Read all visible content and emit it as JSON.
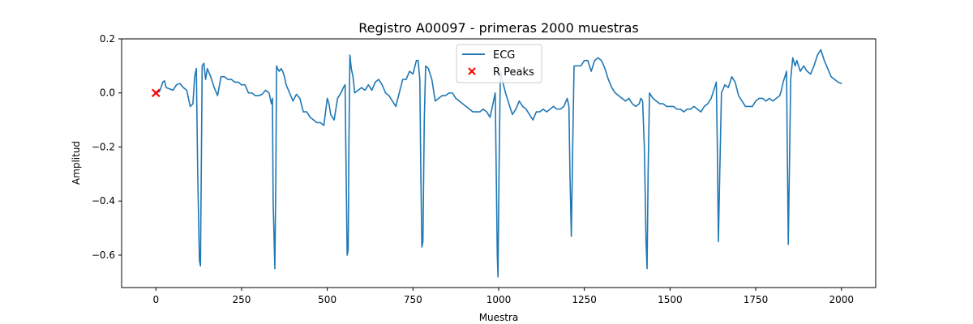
{
  "chart_data": {
    "type": "line",
    "title": "Registro A00097 - primeras 2000 muestras",
    "xlabel": "Muestra",
    "ylabel": "Amplitud",
    "xlim": [
      -100,
      2100
    ],
    "ylim": [
      -0.72,
      0.2
    ],
    "xticks": [
      0,
      250,
      500,
      750,
      1000,
      1250,
      1500,
      1750,
      2000
    ],
    "xtick_labels": [
      "0",
      "250",
      "500",
      "750",
      "1000",
      "1250",
      "1500",
      "1750",
      "2000"
    ],
    "yticks": [
      0.2,
      0.0,
      -0.2,
      -0.4,
      -0.6
    ],
    "ytick_labels": [
      "0.2",
      "0.0",
      "−0.2",
      "−0.4",
      "−0.6"
    ],
    "grid": false,
    "legend_position": "top-center",
    "series": [
      {
        "name": "ECG",
        "kind": "line",
        "color": "#1f77b4",
        "points": [
          [
            0,
            0.0
          ],
          [
            10,
            0.005
          ],
          [
            15,
            0.02
          ],
          [
            20,
            0.04
          ],
          [
            25,
            0.045
          ],
          [
            30,
            0.02
          ],
          [
            40,
            0.015
          ],
          [
            50,
            0.01
          ],
          [
            60,
            0.03
          ],
          [
            70,
            0.035
          ],
          [
            80,
            0.02
          ],
          [
            90,
            0.01
          ],
          [
            95,
            -0.02
          ],
          [
            100,
            -0.05
          ],
          [
            108,
            -0.04
          ],
          [
            113,
            0.06
          ],
          [
            118,
            0.09
          ],
          [
            122,
            -0.3
          ],
          [
            127,
            -0.62
          ],
          [
            130,
            -0.64
          ],
          [
            133,
            -0.2
          ],
          [
            135,
            0.1
          ],
          [
            140,
            0.11
          ],
          [
            145,
            0.05
          ],
          [
            150,
            0.09
          ],
          [
            160,
            0.06
          ],
          [
            170,
            0.02
          ],
          [
            180,
            -0.01
          ],
          [
            190,
            0.06
          ],
          [
            200,
            0.06
          ],
          [
            210,
            0.05
          ],
          [
            220,
            0.05
          ],
          [
            230,
            0.04
          ],
          [
            240,
            0.04
          ],
          [
            250,
            0.03
          ],
          [
            260,
            0.03
          ],
          [
            270,
            0.0
          ],
          [
            280,
            0.0
          ],
          [
            290,
            -0.01
          ],
          [
            300,
            -0.01
          ],
          [
            310,
            -0.005
          ],
          [
            320,
            0.01
          ],
          [
            330,
            0.0
          ],
          [
            337,
            -0.04
          ],
          [
            340,
            -0.02
          ],
          [
            342,
            -0.4
          ],
          [
            347,
            -0.65
          ],
          [
            350,
            -0.3
          ],
          [
            352,
            0.1
          ],
          [
            355,
            0.09
          ],
          [
            360,
            0.08
          ],
          [
            365,
            0.09
          ],
          [
            370,
            0.08
          ],
          [
            375,
            0.06
          ],
          [
            380,
            0.03
          ],
          [
            390,
            0.0
          ],
          [
            400,
            -0.03
          ],
          [
            410,
            -0.005
          ],
          [
            420,
            -0.02
          ],
          [
            430,
            -0.07
          ],
          [
            440,
            -0.07
          ],
          [
            450,
            -0.09
          ],
          [
            460,
            -0.1
          ],
          [
            470,
            -0.11
          ],
          [
            480,
            -0.11
          ],
          [
            490,
            -0.12
          ],
          [
            500,
            -0.02
          ],
          [
            505,
            -0.04
          ],
          [
            510,
            -0.08
          ],
          [
            520,
            -0.1
          ],
          [
            530,
            -0.02
          ],
          [
            540,
            0.0
          ],
          [
            547,
            0.02
          ],
          [
            552,
            0.03
          ],
          [
            555,
            -0.3
          ],
          [
            558,
            -0.6
          ],
          [
            561,
            -0.58
          ],
          [
            563,
            -0.2
          ],
          [
            566,
            0.14
          ],
          [
            570,
            0.09
          ],
          [
            575,
            0.06
          ],
          [
            580,
            0.0
          ],
          [
            590,
            0.01
          ],
          [
            600,
            0.02
          ],
          [
            610,
            0.01
          ],
          [
            620,
            0.03
          ],
          [
            630,
            0.01
          ],
          [
            640,
            0.04
          ],
          [
            650,
            0.05
          ],
          [
            660,
            0.03
          ],
          [
            670,
            0.0
          ],
          [
            680,
            -0.01
          ],
          [
            690,
            -0.03
          ],
          [
            700,
            -0.05
          ],
          [
            710,
            0.0
          ],
          [
            720,
            0.05
          ],
          [
            730,
            0.05
          ],
          [
            740,
            0.08
          ],
          [
            750,
            0.07
          ],
          [
            760,
            0.12
          ],
          [
            765,
            0.12
          ],
          [
            770,
            0.05
          ],
          [
            773,
            -0.3
          ],
          [
            776,
            -0.57
          ],
          [
            779,
            -0.55
          ],
          [
            783,
            -0.1
          ],
          [
            787,
            0.1
          ],
          [
            795,
            0.09
          ],
          [
            805,
            0.05
          ],
          [
            815,
            -0.03
          ],
          [
            825,
            -0.02
          ],
          [
            835,
            -0.01
          ],
          [
            845,
            -0.01
          ],
          [
            855,
            0.0
          ],
          [
            865,
            0.0
          ],
          [
            875,
            -0.02
          ],
          [
            885,
            -0.03
          ],
          [
            895,
            -0.04
          ],
          [
            905,
            -0.05
          ],
          [
            915,
            -0.06
          ],
          [
            925,
            -0.07
          ],
          [
            935,
            -0.07
          ],
          [
            945,
            -0.07
          ],
          [
            955,
            -0.06
          ],
          [
            965,
            -0.07
          ],
          [
            975,
            -0.09
          ],
          [
            985,
            -0.03
          ],
          [
            990,
            0.0
          ],
          [
            993,
            -0.3
          ],
          [
            996,
            -0.6
          ],
          [
            998,
            -0.68
          ],
          [
            1001,
            -0.3
          ],
          [
            1005,
            0.08
          ],
          [
            1010,
            0.05
          ],
          [
            1020,
            0.0
          ],
          [
            1030,
            -0.04
          ],
          [
            1040,
            -0.08
          ],
          [
            1050,
            -0.06
          ],
          [
            1060,
            -0.03
          ],
          [
            1070,
            -0.05
          ],
          [
            1080,
            -0.06
          ],
          [
            1090,
            -0.08
          ],
          [
            1100,
            -0.1
          ],
          [
            1110,
            -0.07
          ],
          [
            1120,
            -0.07
          ],
          [
            1130,
            -0.06
          ],
          [
            1140,
            -0.07
          ],
          [
            1150,
            -0.06
          ],
          [
            1160,
            -0.05
          ],
          [
            1170,
            -0.06
          ],
          [
            1180,
            -0.06
          ],
          [
            1190,
            -0.05
          ],
          [
            1200,
            -0.02
          ],
          [
            1205,
            -0.05
          ],
          [
            1208,
            -0.3
          ],
          [
            1212,
            -0.53
          ],
          [
            1216,
            -0.2
          ],
          [
            1220,
            0.1
          ],
          [
            1230,
            0.1
          ],
          [
            1240,
            0.1
          ],
          [
            1250,
            0.12
          ],
          [
            1260,
            0.12
          ],
          [
            1270,
            0.08
          ],
          [
            1280,
            0.12
          ],
          [
            1290,
            0.13
          ],
          [
            1300,
            0.12
          ],
          [
            1310,
            0.09
          ],
          [
            1320,
            0.05
          ],
          [
            1330,
            0.02
          ],
          [
            1340,
            0.0
          ],
          [
            1350,
            -0.01
          ],
          [
            1360,
            -0.02
          ],
          [
            1370,
            -0.03
          ],
          [
            1380,
            -0.02
          ],
          [
            1390,
            -0.04
          ],
          [
            1400,
            -0.05
          ],
          [
            1410,
            -0.04
          ],
          [
            1415,
            -0.02
          ],
          [
            1420,
            -0.03
          ],
          [
            1425,
            -0.2
          ],
          [
            1430,
            -0.55
          ],
          [
            1433,
            -0.65
          ],
          [
            1436,
            -0.3
          ],
          [
            1440,
            0.0
          ],
          [
            1450,
            -0.02
          ],
          [
            1460,
            -0.03
          ],
          [
            1470,
            -0.04
          ],
          [
            1480,
            -0.04
          ],
          [
            1490,
            -0.05
          ],
          [
            1500,
            -0.05
          ],
          [
            1510,
            -0.05
          ],
          [
            1520,
            -0.06
          ],
          [
            1530,
            -0.06
          ],
          [
            1540,
            -0.07
          ],
          [
            1550,
            -0.06
          ],
          [
            1560,
            -0.06
          ],
          [
            1570,
            -0.05
          ],
          [
            1580,
            -0.06
          ],
          [
            1590,
            -0.07
          ],
          [
            1600,
            -0.05
          ],
          [
            1610,
            -0.04
          ],
          [
            1620,
            -0.02
          ],
          [
            1625,
            0.0
          ],
          [
            1630,
            0.02
          ],
          [
            1635,
            0.04
          ],
          [
            1638,
            -0.2
          ],
          [
            1641,
            -0.55
          ],
          [
            1645,
            -0.3
          ],
          [
            1650,
            0.0
          ],
          [
            1660,
            0.03
          ],
          [
            1670,
            0.02
          ],
          [
            1680,
            0.06
          ],
          [
            1690,
            0.04
          ],
          [
            1700,
            -0.01
          ],
          [
            1710,
            -0.03
          ],
          [
            1720,
            -0.05
          ],
          [
            1730,
            -0.05
          ],
          [
            1740,
            -0.05
          ],
          [
            1750,
            -0.03
          ],
          [
            1760,
            -0.02
          ],
          [
            1770,
            -0.02
          ],
          [
            1780,
            -0.03
          ],
          [
            1790,
            -0.02
          ],
          [
            1800,
            -0.03
          ],
          [
            1810,
            -0.02
          ],
          [
            1820,
            -0.01
          ],
          [
            1825,
            0.01
          ],
          [
            1830,
            0.04
          ],
          [
            1835,
            0.06
          ],
          [
            1840,
            0.08
          ],
          [
            1842,
            -0.2
          ],
          [
            1845,
            -0.56
          ],
          [
            1848,
            -0.3
          ],
          [
            1852,
            0.05
          ],
          [
            1858,
            0.13
          ],
          [
            1865,
            0.1
          ],
          [
            1870,
            0.12
          ],
          [
            1880,
            0.08
          ],
          [
            1890,
            0.1
          ],
          [
            1900,
            0.08
          ],
          [
            1910,
            0.07
          ],
          [
            1920,
            0.1
          ],
          [
            1930,
            0.14
          ],
          [
            1940,
            0.16
          ],
          [
            1950,
            0.12
          ],
          [
            1960,
            0.09
          ],
          [
            1970,
            0.06
          ],
          [
            1980,
            0.05
          ],
          [
            1990,
            0.04
          ],
          [
            2000,
            0.035
          ]
        ]
      },
      {
        "name": "R Peaks",
        "kind": "scatter",
        "marker": "x",
        "color": "#ff0000",
        "points": [
          [
            0,
            0.0
          ]
        ]
      }
    ]
  }
}
